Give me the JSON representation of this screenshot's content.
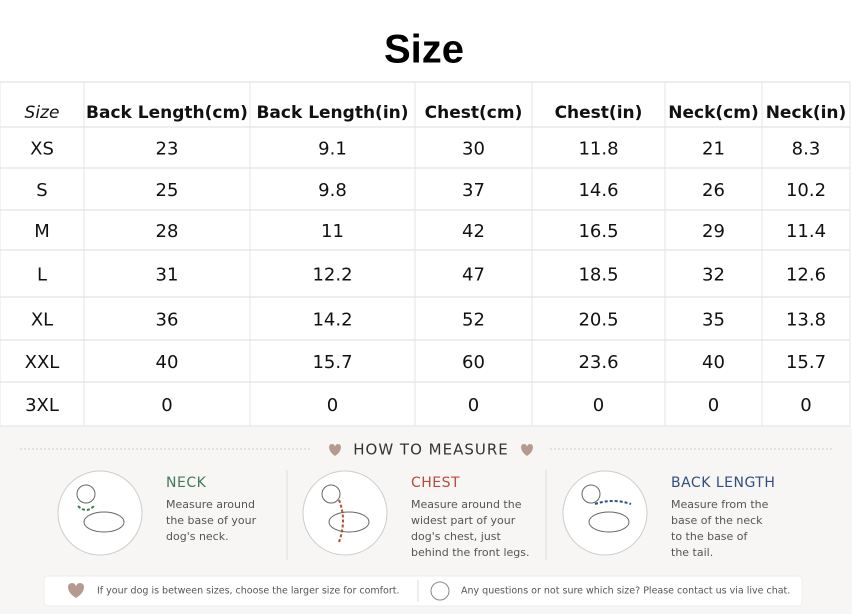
{
  "title": "Size",
  "table": {
    "columns": [
      "Size",
      "Back Length(cm)",
      "Back Length(in)",
      "Chest(cm)",
      "Chest(in)",
      "Neck(cm)",
      "Neck(in)"
    ],
    "rows": [
      [
        "XS",
        "23",
        "9.1",
        "30",
        "11.8",
        "21",
        "8.3"
      ],
      [
        "S",
        "25",
        "9.8",
        "37",
        "14.6",
        "26",
        "10.2"
      ],
      [
        "M",
        "28",
        "11",
        "42",
        "16.5",
        "29",
        "11.4"
      ],
      [
        "L",
        "31",
        "12.2",
        "47",
        "18.5",
        "32",
        "12.6"
      ],
      [
        "XL",
        "36",
        "14.2",
        "52",
        "20.5",
        "35",
        "13.8"
      ],
      [
        "XXL",
        "40",
        "15.7",
        "60",
        "23.6",
        "40",
        "15.7"
      ],
      [
        "3XL",
        "0",
        "0",
        "0",
        "0",
        "0",
        "0"
      ]
    ]
  },
  "measure": {
    "heading": "HOW TO MEASURE",
    "items": [
      {
        "title": "NECK",
        "lines": [
          "Measure around",
          "the base of your",
          "dog's neck."
        ]
      },
      {
        "title": "CHEST",
        "lines": [
          "Measure around the",
          "widest part of your",
          "dog's chest, just",
          "behind the front legs."
        ]
      },
      {
        "title": "BACK LENGTH",
        "lines": [
          "Measure from the",
          "base of the neck",
          "to the base of",
          "the tail."
        ]
      }
    ]
  },
  "footer": {
    "left": "If your dog is between sizes, choose the larger size for comfort.",
    "right": "Any questions or not sure which size? Please contact us via live chat."
  }
}
